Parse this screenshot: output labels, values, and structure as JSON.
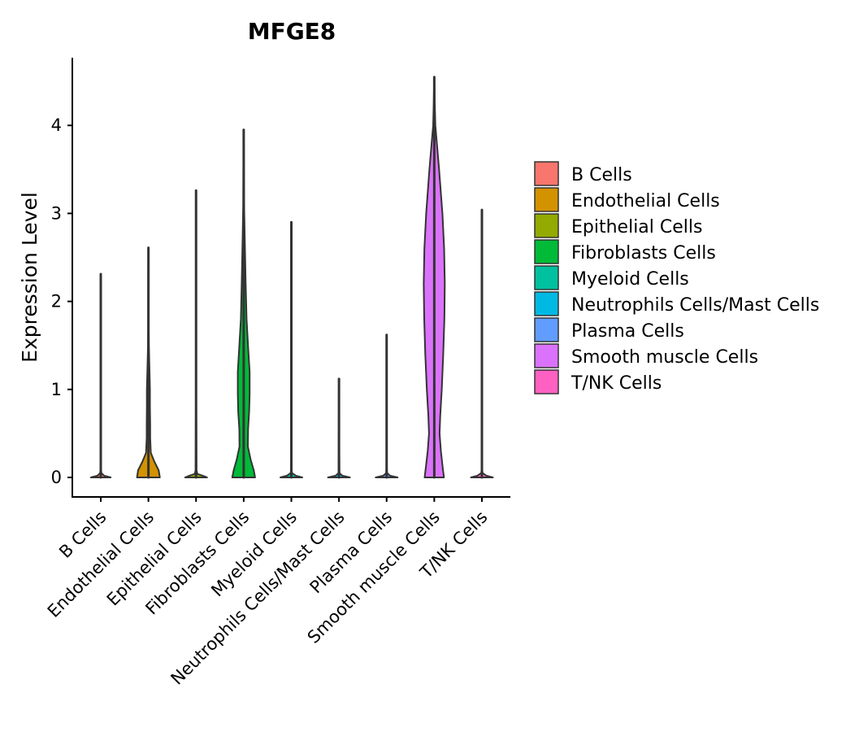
{
  "chart_data": {
    "type": "violin",
    "title": "MFGE8",
    "xlabel": "",
    "ylabel": "Expression Level",
    "ylim": [
      -0.22,
      4.75
    ],
    "yticks": [
      0,
      1,
      2,
      3,
      4
    ],
    "categories": [
      "B Cells",
      "Endothelial Cells",
      "Epithelial Cells",
      "Fibroblasts Cells",
      "Myeloid Cells",
      "Neutrophils Cells/Mast Cells",
      "Plasma Cells",
      "Smooth muscle Cells",
      "T/NK Cells"
    ],
    "colors": [
      "#F8766D",
      "#D39200",
      "#93AA00",
      "#00BA38",
      "#00C19F",
      "#00B9E3",
      "#619CFF",
      "#DB72FB",
      "#FF61C3"
    ],
    "series": [
      {
        "name": "B Cells",
        "max": 2.31,
        "min": 0,
        "profile": [
          [
            0,
            0.45
          ],
          [
            0.02,
            0.15
          ],
          [
            0.05,
            0.03
          ],
          [
            0.1,
            0.01
          ],
          [
            2.31,
            0.005
          ]
        ]
      },
      {
        "name": "Endothelial Cells",
        "max": 2.61,
        "min": 0,
        "profile": [
          [
            0,
            0.52
          ],
          [
            0.08,
            0.47
          ],
          [
            0.18,
            0.27
          ],
          [
            0.28,
            0.11
          ],
          [
            0.45,
            0.08
          ],
          [
            0.6,
            0.08
          ],
          [
            0.8,
            0.07
          ],
          [
            1.0,
            0.07
          ],
          [
            1.2,
            0.05
          ],
          [
            1.5,
            0.02
          ],
          [
            1.8,
            0.01
          ],
          [
            2.61,
            0.005
          ]
        ]
      },
      {
        "name": "Epithelial Cells",
        "max": 3.26,
        "min": 0,
        "profile": [
          [
            0,
            0.5
          ],
          [
            0.02,
            0.3
          ],
          [
            0.04,
            0.06
          ],
          [
            0.08,
            0.02
          ],
          [
            0.8,
            0.01
          ],
          [
            3.26,
            0.005
          ]
        ]
      },
      {
        "name": "Fibroblasts Cells",
        "max": 3.95,
        "min": 0,
        "profile": [
          [
            0,
            0.52
          ],
          [
            0.08,
            0.46
          ],
          [
            0.2,
            0.32
          ],
          [
            0.35,
            0.19
          ],
          [
            0.55,
            0.2
          ],
          [
            0.75,
            0.25
          ],
          [
            0.95,
            0.27
          ],
          [
            1.2,
            0.27
          ],
          [
            1.45,
            0.21
          ],
          [
            1.8,
            0.13
          ],
          [
            2.2,
            0.09
          ],
          [
            2.7,
            0.05
          ],
          [
            3.1,
            0.02
          ],
          [
            3.95,
            0.005
          ]
        ]
      },
      {
        "name": "Myeloid Cells",
        "max": 2.9,
        "min": 0,
        "profile": [
          [
            0,
            0.5
          ],
          [
            0.02,
            0.2
          ],
          [
            0.05,
            0.03
          ],
          [
            0.1,
            0.01
          ],
          [
            2.9,
            0.005
          ]
        ]
      },
      {
        "name": "Neutrophils Cells/Mast Cells",
        "max": 1.12,
        "min": 0,
        "profile": [
          [
            0,
            0.5
          ],
          [
            0.02,
            0.15
          ],
          [
            0.05,
            0.02
          ],
          [
            0.3,
            0.015
          ],
          [
            0.7,
            0.01
          ],
          [
            1.12,
            0.005
          ]
        ]
      },
      {
        "name": "Plasma Cells",
        "max": 1.62,
        "min": 0,
        "profile": [
          [
            0,
            0.5
          ],
          [
            0.02,
            0.15
          ],
          [
            0.05,
            0.02
          ],
          [
            0.1,
            0.01
          ],
          [
            1.62,
            0.005
          ]
        ]
      },
      {
        "name": "Smooth muscle Cells",
        "max": 4.55,
        "min": 0,
        "profile": [
          [
            0,
            0.44
          ],
          [
            0.1,
            0.39
          ],
          [
            0.3,
            0.3
          ],
          [
            0.5,
            0.24
          ],
          [
            0.7,
            0.27
          ],
          [
            1.0,
            0.34
          ],
          [
            1.4,
            0.41
          ],
          [
            1.8,
            0.46
          ],
          [
            2.2,
            0.48
          ],
          [
            2.6,
            0.45
          ],
          [
            3.0,
            0.37
          ],
          [
            3.5,
            0.22
          ],
          [
            4.0,
            0.05
          ],
          [
            4.3,
            0.02
          ],
          [
            4.55,
            0.005
          ]
        ]
      },
      {
        "name": "T/NK Cells",
        "max": 3.04,
        "min": 0,
        "profile": [
          [
            0,
            0.5
          ],
          [
            0.02,
            0.2
          ],
          [
            0.05,
            0.03
          ],
          [
            0.1,
            0.01
          ],
          [
            3.04,
            0.005
          ]
        ]
      }
    ],
    "legend": {
      "position": "right",
      "entries": [
        "B Cells",
        "Endothelial Cells",
        "Epithelial Cells",
        "Fibroblasts Cells",
        "Myeloid Cells",
        "Neutrophils Cells/Mast Cells",
        "Plasma Cells",
        "Smooth muscle Cells",
        "T/NK Cells"
      ]
    }
  }
}
